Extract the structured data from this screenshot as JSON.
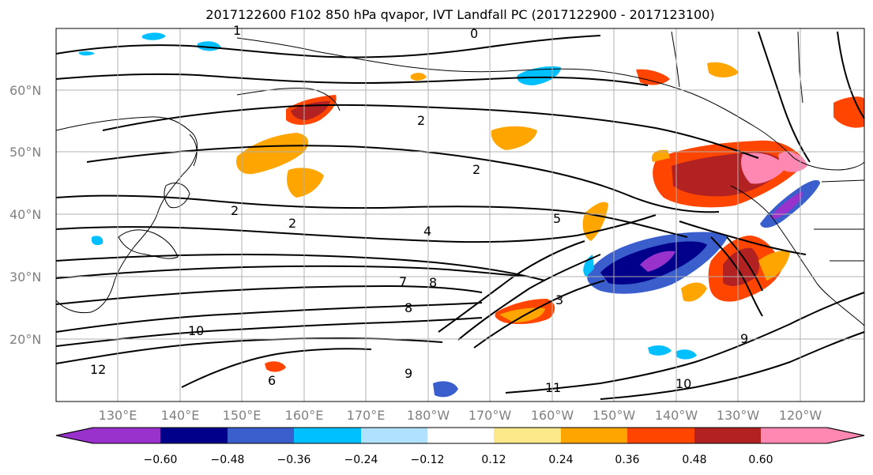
{
  "figure": {
    "title": "2017122600 F102 850 hPa qvapor, IVT Landfall PC (2017122900 - 2017123100)"
  },
  "map": {
    "lon_labels": [
      "130°E",
      "140°E",
      "150°E",
      "160°E",
      "170°E",
      "180°W",
      "170°W",
      "160°W",
      "150°W",
      "140°W",
      "130°W",
      "120°W"
    ],
    "lat_labels": [
      "60°N",
      "50°N",
      "40°N",
      "30°N",
      "20°N"
    ],
    "contour_labels": [
      "0",
      "1",
      "2",
      "2",
      "2",
      "2",
      "4",
      "7",
      "8",
      "8",
      "9",
      "9",
      "10",
      "10",
      "11",
      "12",
      "6",
      "3",
      "5"
    ]
  },
  "colorbar": {
    "tick_labels": [
      "−0.60",
      "−0.48",
      "−0.36",
      "−0.24",
      "−0.12",
      "0.12",
      "0.24",
      "0.36",
      "0.48",
      "0.60"
    ],
    "colors": [
      "#9932cc",
      "#00008b",
      "#3a5fcd",
      "#00bfff",
      "#b0e2ff",
      "#ffffff",
      "#fde98a",
      "#ffa500",
      "#ff4500",
      "#b22222",
      "#ff88b3"
    ]
  },
  "chart_data": {
    "type": "heatmap",
    "title": "2017122600 F102 850 hPa qvapor, IVT Landfall PC (2017122900 - 2017123100)",
    "x_ticks": [
      "130°E",
      "140°E",
      "150°E",
      "160°E",
      "170°E",
      "180°W",
      "170°W",
      "160°W",
      "150°W",
      "140°W",
      "130°W",
      "120°W"
    ],
    "y_ticks": [
      "60°N",
      "50°N",
      "40°N",
      "30°N",
      "20°N"
    ],
    "levels": [
      -0.6,
      -0.48,
      -0.36,
      -0.24,
      -0.12,
      0.12,
      0.24,
      0.36,
      0.48,
      0.6
    ],
    "grid": true,
    "colorbar_extend": "both"
  }
}
